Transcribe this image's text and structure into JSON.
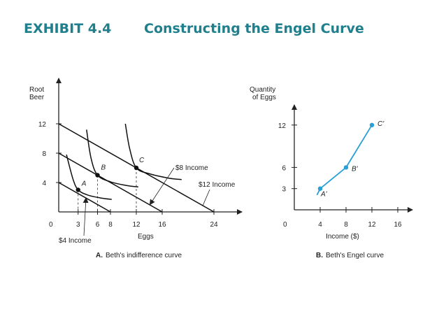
{
  "header": {
    "exhibit_label": "EXHIBIT 4.4",
    "title": "Constructing the Engel Curve",
    "color": "#1f7f8c"
  },
  "chart_data": [
    {
      "type": "line",
      "id": "A",
      "caption_letter": "A.",
      "caption_text": "Beth's indifference curve",
      "xlabel": "Eggs",
      "ylabel_lines": [
        "Root",
        "Beer"
      ],
      "origin_label": "0",
      "xlim": [
        0,
        28
      ],
      "ylim": [
        0,
        15
      ],
      "xticks": [
        3,
        6,
        8,
        12,
        16,
        24
      ],
      "yticks": [
        4,
        8,
        12
      ],
      "budget_lines": [
        {
          "name": "$4 Income",
          "x": [
            0,
            8
          ],
          "y": [
            4,
            0
          ]
        },
        {
          "name": "$8 Income",
          "x": [
            0,
            16
          ],
          "y": [
            8,
            0
          ]
        },
        {
          "name": "$12 Income",
          "x": [
            0,
            24
          ],
          "y": [
            12,
            0
          ]
        }
      ],
      "indifference_curves": [
        {
          "x": [
            1.2,
            2.2,
            3.0,
            4.5,
            6.5,
            8.2
          ],
          "y": [
            7.8,
            4.5,
            3.0,
            2.3,
            1.9,
            1.7
          ]
        },
        {
          "x": [
            4.3,
            5.0,
            6.0,
            8.0,
            10.5,
            12.3
          ],
          "y": [
            11.2,
            7.3,
            5.0,
            4.1,
            3.6,
            3.4
          ]
        },
        {
          "x": [
            10.3,
            11.0,
            12.0,
            14.0,
            17.0,
            19.0
          ],
          "y": [
            12.0,
            8.5,
            6.0,
            5.2,
            4.6,
            4.4
          ]
        }
      ],
      "points": [
        {
          "label": "A",
          "x": 3,
          "y": 3
        },
        {
          "label": "B",
          "x": 6,
          "y": 5
        },
        {
          "label": "C",
          "x": 12,
          "y": 6
        }
      ],
      "annotations": [
        {
          "text": "$8 Income",
          "points_to": "$8 Income"
        },
        {
          "text": "$12 Income",
          "points_to": "$12 Income"
        },
        {
          "text": "$4 Income",
          "points_to": "$4 Income"
        }
      ]
    },
    {
      "type": "line",
      "id": "B",
      "caption_letter": "B.",
      "caption_text": "Beth's Engel curve",
      "xlabel": "Income ($)",
      "ylabel_lines": [
        "Quantity",
        "of Eggs"
      ],
      "origin_label": "0",
      "xlim": [
        0,
        18
      ],
      "ylim": [
        0,
        15
      ],
      "xticks": [
        4,
        8,
        12,
        16
      ],
      "yticks": [
        3,
        6,
        12
      ],
      "line_color": "#2a9fd6",
      "series": [
        {
          "x": [
            3.5,
            4,
            8,
            12
          ],
          "y": [
            2.1,
            3,
            6,
            12
          ]
        }
      ],
      "points": [
        {
          "label": "A'",
          "x": 4,
          "y": 3
        },
        {
          "label": "B'",
          "x": 8,
          "y": 6
        },
        {
          "label": "C'",
          "x": 12,
          "y": 12
        }
      ]
    }
  ]
}
